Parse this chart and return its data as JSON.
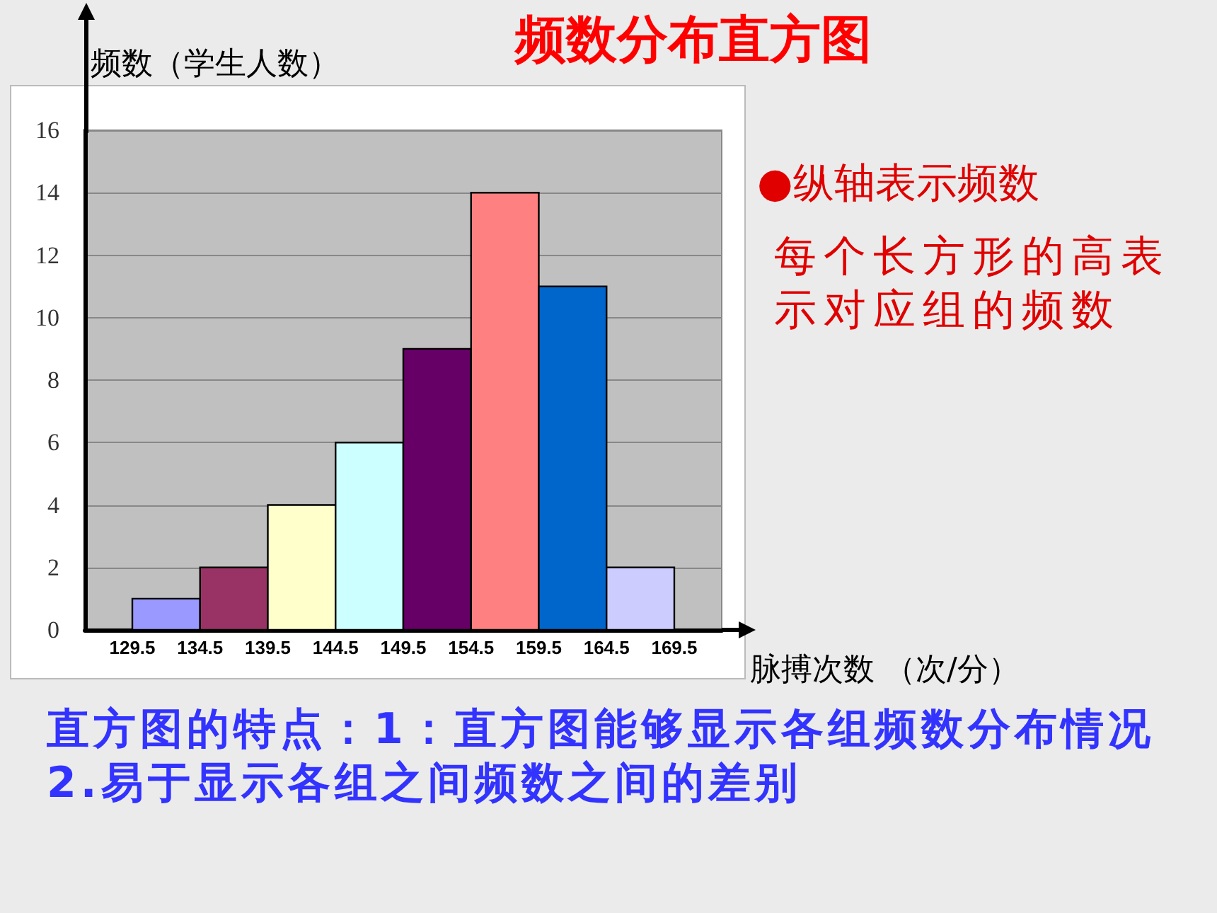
{
  "chart_data": {
    "type": "histogram",
    "title": "频数分布直方图",
    "xlabel": "脉搏次数 （次/分）",
    "ylabel": "频数（学生人数）",
    "bins": [
      129.5,
      134.5,
      139.5,
      144.5,
      149.5,
      154.5,
      159.5,
      164.5,
      169.5
    ],
    "values": [
      1,
      2,
      4,
      6,
      9,
      14,
      11,
      2
    ],
    "colors": [
      "#9999ff",
      "#993366",
      "#ffffcc",
      "#ccffff",
      "#660066",
      "#ff8080",
      "#0066cc",
      "#ccccff"
    ],
    "xlim": [
      126,
      173
    ],
    "xticks": [
      129.5,
      134.5,
      139.5,
      144.5,
      149.5,
      154.5,
      159.5,
      164.5,
      169.5
    ],
    "ylim": [
      0,
      16
    ],
    "yticks": [
      0,
      2,
      4,
      6,
      8,
      10,
      12,
      14,
      16
    ],
    "grid": "y",
    "annotations": [
      "●纵轴表示频数",
      "每个长方形的高表示对应组的频数",
      "直方图的特点：1：直方图能够显示各组频数分布情况2.易于显示各组之间频数之间的差别"
    ]
  }
}
